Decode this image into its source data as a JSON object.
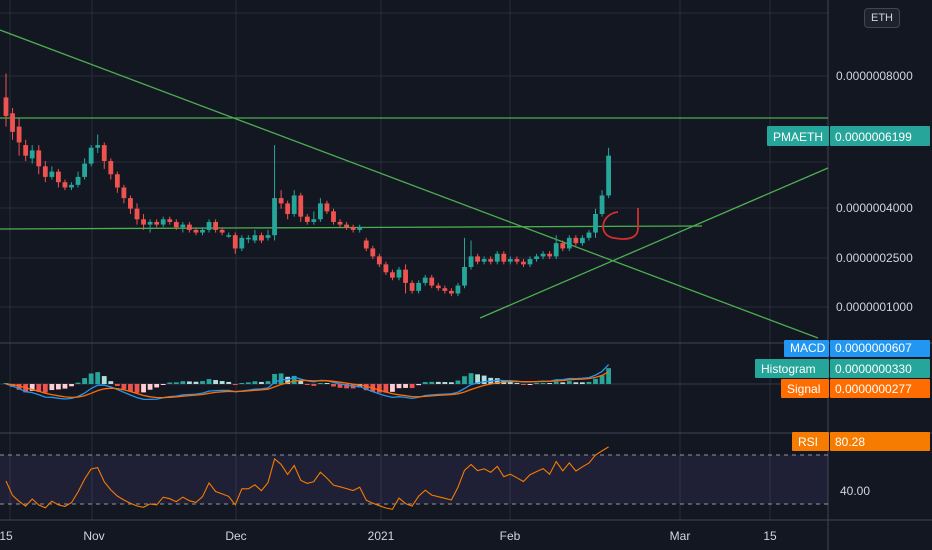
{
  "currency_badge": "ETH",
  "colors": {
    "background": "#131722",
    "grid": "#2a2e39",
    "up": "#26a69a",
    "down": "#ef5350",
    "trendline": "#4caf50",
    "macd": "#2196f3",
    "signal": "#ff6d00",
    "rsi": "#f57c00",
    "rsi_band": "#7e57c2",
    "annotation": "#d32f2f"
  },
  "chart_data": [
    {
      "type": "candlestick",
      "symbol": "PMAETH",
      "price_ticks": [
        "0.0000001000",
        "0.0000002500",
        "0.0000004000",
        "0.0000008000"
      ],
      "last_price_label": "PMAETH",
      "last_price": "0.0000006199",
      "x_tick_labels": [
        "15",
        "Nov",
        "Dec",
        "2021",
        "Feb",
        "Mar",
        "15"
      ],
      "candles": [
        {
          "o": 0.84,
          "c": 0.77,
          "h": 0.93,
          "l": 0.73
        },
        {
          "o": 0.78,
          "c": 0.71,
          "h": 0.8,
          "l": 0.68
        },
        {
          "o": 0.73,
          "c": 0.67,
          "h": 0.76,
          "l": 0.62
        },
        {
          "o": 0.66,
          "c": 0.62,
          "h": 0.68,
          "l": 0.6
        },
        {
          "o": 0.61,
          "c": 0.64,
          "h": 0.66,
          "l": 0.59
        },
        {
          "o": 0.64,
          "c": 0.58,
          "h": 0.66,
          "l": 0.55
        },
        {
          "o": 0.58,
          "c": 0.54,
          "h": 0.6,
          "l": 0.52
        },
        {
          "o": 0.54,
          "c": 0.56,
          "h": 0.58,
          "l": 0.53
        },
        {
          "o": 0.56,
          "c": 0.52,
          "h": 0.57,
          "l": 0.5
        },
        {
          "o": 0.52,
          "c": 0.5,
          "h": 0.53,
          "l": 0.49
        },
        {
          "o": 0.5,
          "c": 0.51,
          "h": 0.52,
          "l": 0.49
        },
        {
          "o": 0.51,
          "c": 0.54,
          "h": 0.56,
          "l": 0.5
        },
        {
          "o": 0.54,
          "c": 0.59,
          "h": 0.61,
          "l": 0.53
        },
        {
          "o": 0.59,
          "c": 0.65,
          "h": 0.66,
          "l": 0.58
        },
        {
          "o": 0.65,
          "c": 0.66,
          "h": 0.7,
          "l": 0.63
        },
        {
          "o": 0.66,
          "c": 0.6,
          "h": 0.67,
          "l": 0.57
        },
        {
          "o": 0.6,
          "c": 0.55,
          "h": 0.61,
          "l": 0.53
        },
        {
          "o": 0.55,
          "c": 0.5,
          "h": 0.56,
          "l": 0.48
        },
        {
          "o": 0.5,
          "c": 0.46,
          "h": 0.51,
          "l": 0.44
        },
        {
          "o": 0.46,
          "c": 0.42,
          "h": 0.47,
          "l": 0.4
        },
        {
          "o": 0.42,
          "c": 0.38,
          "h": 0.44,
          "l": 0.36
        },
        {
          "o": 0.38,
          "c": 0.36,
          "h": 0.4,
          "l": 0.34
        },
        {
          "o": 0.36,
          "c": 0.37,
          "h": 0.38,
          "l": 0.33
        },
        {
          "o": 0.37,
          "c": 0.36,
          "h": 0.38,
          "l": 0.35
        },
        {
          "o": 0.36,
          "c": 0.38,
          "h": 0.39,
          "l": 0.35
        },
        {
          "o": 0.38,
          "c": 0.37,
          "h": 0.39,
          "l": 0.36
        },
        {
          "o": 0.37,
          "c": 0.35,
          "h": 0.38,
          "l": 0.34
        },
        {
          "o": 0.35,
          "c": 0.36,
          "h": 0.37,
          "l": 0.33
        },
        {
          "o": 0.36,
          "c": 0.34,
          "h": 0.37,
          "l": 0.33
        },
        {
          "o": 0.34,
          "c": 0.33,
          "h": 0.35,
          "l": 0.32
        },
        {
          "o": 0.33,
          "c": 0.34,
          "h": 0.35,
          "l": 0.32
        },
        {
          "o": 0.34,
          "c": 0.37,
          "h": 0.38,
          "l": 0.33
        },
        {
          "o": 0.37,
          "c": 0.34,
          "h": 0.38,
          "l": 0.33
        },
        {
          "o": 0.34,
          "c": 0.33,
          "h": 0.35,
          "l": 0.32
        },
        {
          "o": 0.32,
          "c": 0.32,
          "h": 0.33,
          "l": 0.31
        },
        {
          "o": 0.32,
          "c": 0.27,
          "h": 0.33,
          "l": 0.25
        },
        {
          "o": 0.27,
          "c": 0.31,
          "h": 0.32,
          "l": 0.26
        },
        {
          "o": 0.31,
          "c": 0.31,
          "h": 0.32,
          "l": 0.29
        },
        {
          "o": 0.3,
          "c": 0.32,
          "h": 0.34,
          "l": 0.29
        },
        {
          "o": 0.32,
          "c": 0.3,
          "h": 0.33,
          "l": 0.29
        },
        {
          "o": 0.31,
          "c": 0.32,
          "h": 0.34,
          "l": 0.3
        },
        {
          "o": 0.32,
          "c": 0.46,
          "h": 0.66,
          "l": 0.3
        },
        {
          "o": 0.46,
          "c": 0.44,
          "h": 0.49,
          "l": 0.42
        },
        {
          "o": 0.44,
          "c": 0.4,
          "h": 0.45,
          "l": 0.38
        },
        {
          "o": 0.4,
          "c": 0.47,
          "h": 0.49,
          "l": 0.39
        },
        {
          "o": 0.47,
          "c": 0.39,
          "h": 0.48,
          "l": 0.37
        },
        {
          "o": 0.39,
          "c": 0.37,
          "h": 0.4,
          "l": 0.36
        },
        {
          "o": 0.37,
          "c": 0.38,
          "h": 0.41,
          "l": 0.36
        },
        {
          "o": 0.38,
          "c": 0.44,
          "h": 0.46,
          "l": 0.37
        },
        {
          "o": 0.44,
          "c": 0.41,
          "h": 0.45,
          "l": 0.4
        },
        {
          "o": 0.41,
          "c": 0.37,
          "h": 0.42,
          "l": 0.36
        },
        {
          "o": 0.37,
          "c": 0.36,
          "h": 0.38,
          "l": 0.35
        },
        {
          "o": 0.36,
          "c": 0.35,
          "h": 0.37,
          "l": 0.34
        },
        {
          "o": 0.35,
          "c": 0.34,
          "h": 0.36,
          "l": 0.33
        },
        {
          "o": 0.34,
          "c": 0.35,
          "h": 0.36,
          "l": 0.33
        },
        {
          "o": 0.3,
          "c": 0.27,
          "h": 0.31,
          "l": 0.26
        },
        {
          "o": 0.27,
          "c": 0.24,
          "h": 0.28,
          "l": 0.23
        },
        {
          "o": 0.24,
          "c": 0.21,
          "h": 0.25,
          "l": 0.2
        },
        {
          "o": 0.21,
          "c": 0.18,
          "h": 0.22,
          "l": 0.17
        },
        {
          "o": 0.18,
          "c": 0.16,
          "h": 0.19,
          "l": 0.15
        },
        {
          "o": 0.16,
          "c": 0.19,
          "h": 0.2,
          "l": 0.15
        },
        {
          "o": 0.19,
          "c": 0.14,
          "h": 0.21,
          "l": 0.1
        },
        {
          "o": 0.14,
          "c": 0.11,
          "h": 0.15,
          "l": 0.1
        },
        {
          "o": 0.11,
          "c": 0.14,
          "h": 0.15,
          "l": 0.1
        },
        {
          "o": 0.14,
          "c": 0.16,
          "h": 0.17,
          "l": 0.13
        },
        {
          "o": 0.16,
          "c": 0.13,
          "h": 0.17,
          "l": 0.12
        },
        {
          "o": 0.13,
          "c": 0.12,
          "h": 0.14,
          "l": 0.11
        },
        {
          "o": 0.12,
          "c": 0.11,
          "h": 0.13,
          "l": 0.1
        },
        {
          "o": 0.11,
          "c": 0.1,
          "h": 0.12,
          "l": 0.09
        },
        {
          "o": 0.1,
          "c": 0.13,
          "h": 0.14,
          "l": 0.09
        },
        {
          "o": 0.13,
          "c": 0.2,
          "h": 0.31,
          "l": 0.12
        },
        {
          "o": 0.2,
          "c": 0.24,
          "h": 0.3,
          "l": 0.19
        },
        {
          "o": 0.24,
          "c": 0.22,
          "h": 0.25,
          "l": 0.21
        },
        {
          "o": 0.22,
          "c": 0.23,
          "h": 0.24,
          "l": 0.21
        },
        {
          "o": 0.23,
          "c": 0.22,
          "h": 0.24,
          "l": 0.21
        },
        {
          "o": 0.22,
          "c": 0.25,
          "h": 0.26,
          "l": 0.21
        },
        {
          "o": 0.25,
          "c": 0.22,
          "h": 0.26,
          "l": 0.21
        },
        {
          "o": 0.22,
          "c": 0.23,
          "h": 0.24,
          "l": 0.21
        },
        {
          "o": 0.23,
          "c": 0.22,
          "h": 0.24,
          "l": 0.21
        },
        {
          "o": 0.22,
          "c": 0.21,
          "h": 0.23,
          "l": 0.2
        },
        {
          "o": 0.21,
          "c": 0.23,
          "h": 0.24,
          "l": 0.2
        },
        {
          "o": 0.23,
          "c": 0.24,
          "h": 0.25,
          "l": 0.22
        },
        {
          "o": 0.24,
          "c": 0.25,
          "h": 0.26,
          "l": 0.23
        },
        {
          "o": 0.25,
          "c": 0.24,
          "h": 0.26,
          "l": 0.23
        },
        {
          "o": 0.24,
          "c": 0.29,
          "h": 0.32,
          "l": 0.23
        },
        {
          "o": 0.29,
          "c": 0.27,
          "h": 0.3,
          "l": 0.26
        },
        {
          "o": 0.27,
          "c": 0.31,
          "h": 0.32,
          "l": 0.26
        },
        {
          "o": 0.31,
          "c": 0.29,
          "h": 0.32,
          "l": 0.28
        },
        {
          "o": 0.29,
          "c": 0.31,
          "h": 0.32,
          "l": 0.28
        },
        {
          "o": 0.31,
          "c": 0.33,
          "h": 0.34,
          "l": 0.3
        },
        {
          "o": 0.33,
          "c": 0.4,
          "h": 0.42,
          "l": 0.31
        },
        {
          "o": 0.4,
          "c": 0.47,
          "h": 0.49,
          "l": 0.39
        },
        {
          "o": 0.47,
          "c": 0.62,
          "h": 0.65,
          "l": 0.46
        }
      ]
    },
    {
      "type": "macd",
      "labels": {
        "macd": "MACD",
        "histogram": "Histogram",
        "signal": "Signal"
      },
      "values": {
        "macd": "0.0000000607",
        "histogram": "0.0000000330",
        "signal": "0.0000000277"
      }
    },
    {
      "type": "rsi",
      "label": "RSI",
      "value": "80.28",
      "tick": "40.00"
    }
  ]
}
